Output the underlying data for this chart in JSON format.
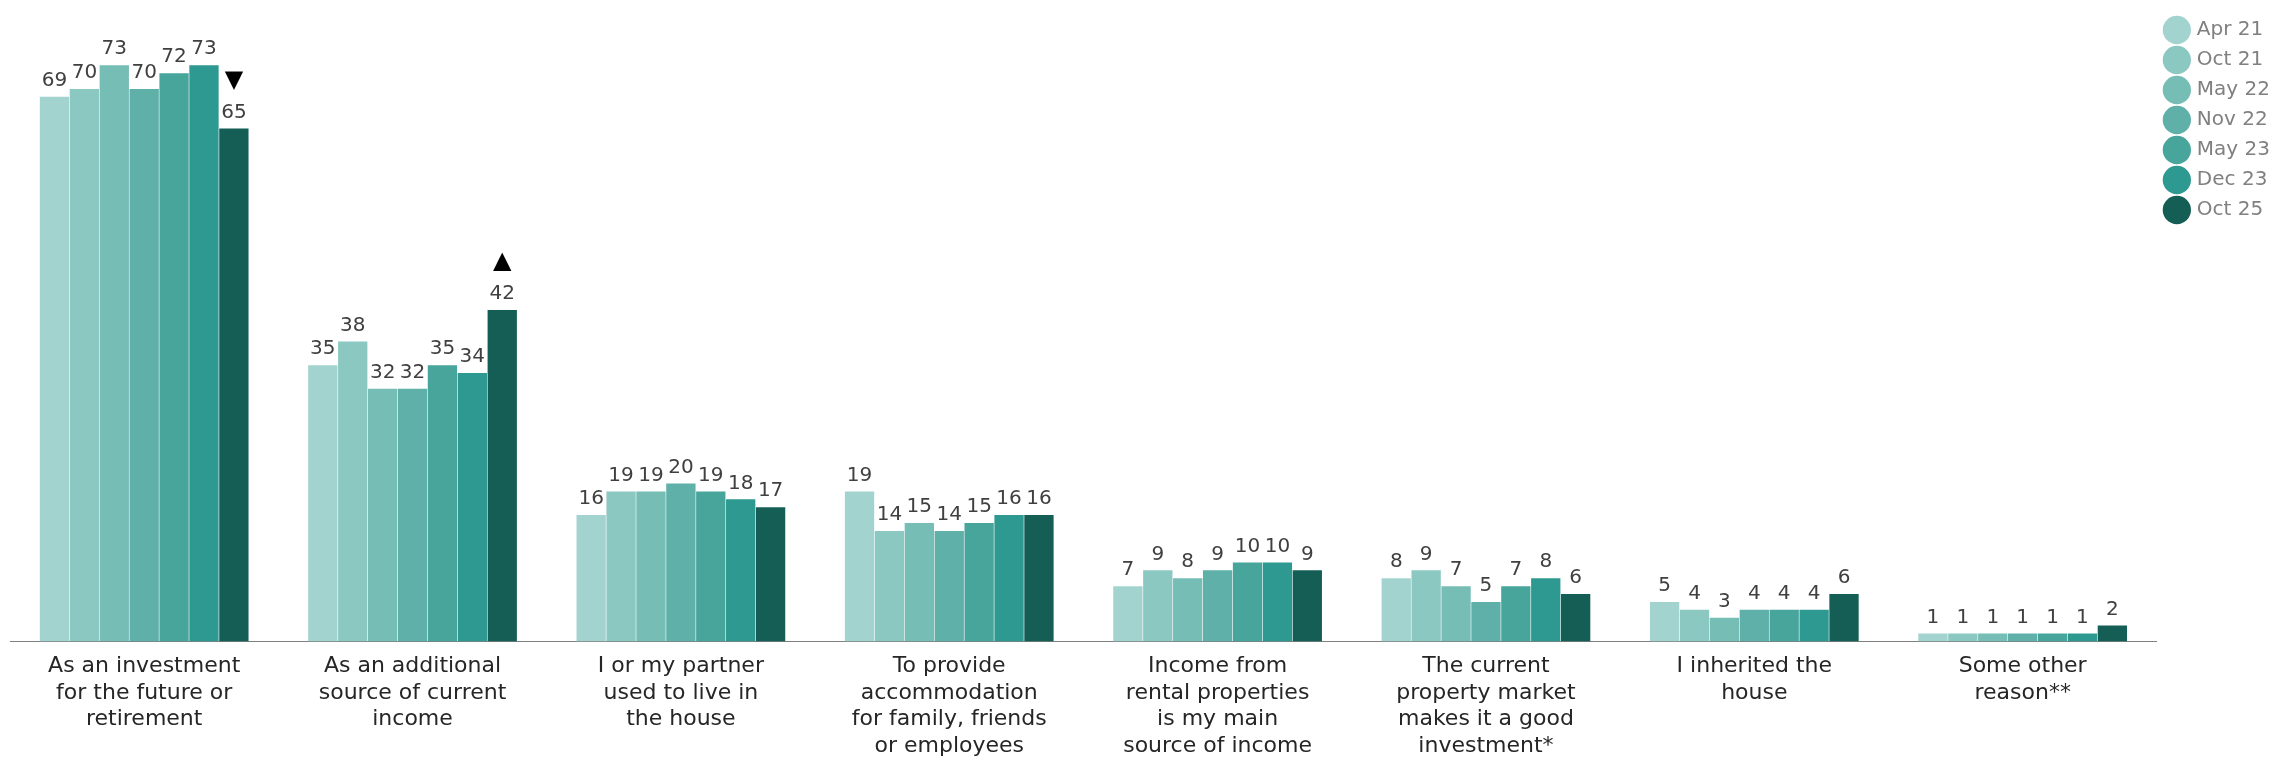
{
  "chart_data": {
    "type": "bar",
    "categories": [
      "As an investment for the future or retirement",
      "As an additional source of current income",
      "I or my partner used to live in the house",
      "To provide accommodation for family, friends or employees",
      "Income from rental properties is my main source of income",
      "The current property market makes it a good investment*",
      "I inherited the house",
      "Some other reason**"
    ],
    "series": [
      {
        "name": "Apr 21",
        "color": "#a3d3cf",
        "values": [
          69,
          35,
          16,
          19,
          7,
          8,
          5,
          1
        ]
      },
      {
        "name": "Oct 21",
        "color": "#8cc8c2",
        "values": [
          70,
          38,
          19,
          14,
          9,
          9,
          4,
          1
        ]
      },
      {
        "name": "May 22",
        "color": "#75bdb5",
        "values": [
          73,
          32,
          19,
          15,
          8,
          7,
          3,
          1
        ]
      },
      {
        "name": "Nov 22",
        "color": "#5eb0a8",
        "values": [
          70,
          32,
          20,
          14,
          9,
          5,
          4,
          1
        ]
      },
      {
        "name": "May 23",
        "color": "#47a59c",
        "values": [
          72,
          35,
          19,
          15,
          10,
          7,
          4,
          1
        ]
      },
      {
        "name": "Dec 23",
        "color": "#2e9990",
        "values": [
          73,
          34,
          18,
          16,
          10,
          8,
          4,
          1
        ]
      },
      {
        "name": "Oct 25",
        "color": "#145e56",
        "values": [
          65,
          42,
          17,
          16,
          9,
          6,
          6,
          2
        ]
      }
    ],
    "data_labels": true,
    "grid": false,
    "legend": "top right",
    "annotations": [
      "▼",
      "▲"
    ]
  }
}
